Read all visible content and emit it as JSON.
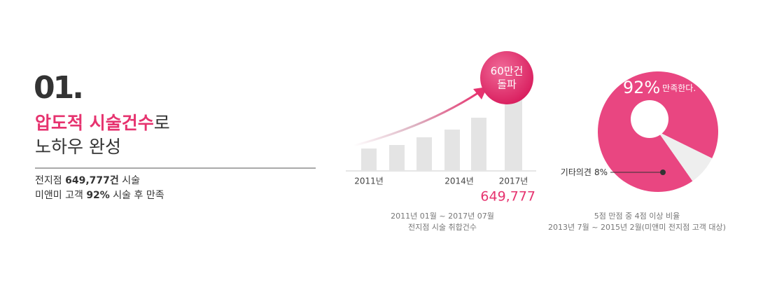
{
  "header": {
    "number": "01.",
    "title_highlight": "압도적 시술건수",
    "title_rest": "로",
    "subtitle": "노하우 완성"
  },
  "stats": [
    [
      "전지점 ",
      "649,777건",
      " 시술"
    ],
    [
      "미앤미 고객 ",
      "92%",
      " 시술 후 만족"
    ]
  ],
  "bar_chart": {
    "type": "bar",
    "categories": [
      "2011년",
      null,
      null,
      "2014년",
      null,
      "2017년"
    ],
    "values": [
      31,
      36,
      47,
      58,
      75,
      103
    ],
    "color": "#e4e4e4",
    "total": "649,777",
    "badge": [
      "60만건",
      "돌파"
    ],
    "note": [
      "2011년 01월 ~ 2017년 07월",
      "전지점 시술 취합건수"
    ]
  },
  "donut_chart": {
    "type": "pie",
    "values": [
      92,
      8
    ],
    "value_labels": [
      "92%",
      "8%"
    ],
    "names": [
      "만족한다.",
      "기타의견"
    ],
    "colors": [
      "#e94681",
      "#eeeeee"
    ],
    "note": [
      "5점 만점 중 4점 이상 비율",
      "2013년 7월 ~ 2015년 2월(미앤미 전지점 고객 대상)"
    ]
  }
}
